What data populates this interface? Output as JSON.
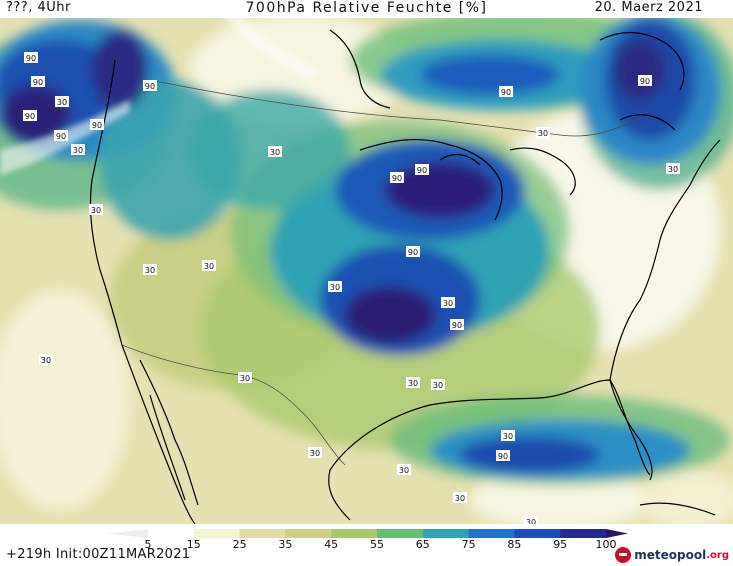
{
  "header": {
    "left": "???, 4Uhr",
    "title": "700hPa Relative Feuchte [%]",
    "date": "20. Maerz 2021"
  },
  "footer": {
    "run": "+219h Init:00Z11MAR2021",
    "brand": "meteopool",
    "brand_tld": ".org"
  },
  "legend": {
    "ticks": [
      "5",
      "15",
      "25",
      "35",
      "45",
      "55",
      "65",
      "75",
      "85",
      "95",
      "100"
    ],
    "colors": [
      "#ffffff",
      "#f5f3d2",
      "#e0dca2",
      "#cfcf84",
      "#a8c96a",
      "#62bf72",
      "#2fa3b5",
      "#1f74c8",
      "#1a4fb4",
      "#252a8c",
      "#2b1666"
    ]
  },
  "map": {
    "contour_labels": [
      "90",
      "90",
      "90",
      "90",
      "90",
      "90",
      "90",
      "90",
      "90",
      "90",
      "90",
      "90",
      "30",
      "30",
      "30",
      "30",
      "30",
      "30",
      "30",
      "30",
      "30",
      "30",
      "30",
      "30",
      "30",
      "30",
      "30",
      "30",
      "30",
      "30",
      "30",
      "30"
    ],
    "colors": {
      "land_dry": "#f7f5df",
      "low": "#ddd9a2",
      "mid": "#b9c97c",
      "green": "#6fc07a",
      "teal": "#2ea3b4",
      "blue": "#1f6fc6",
      "navy": "#1c3a9e",
      "dark": "#2a1d72",
      "border": "#000000"
    }
  }
}
